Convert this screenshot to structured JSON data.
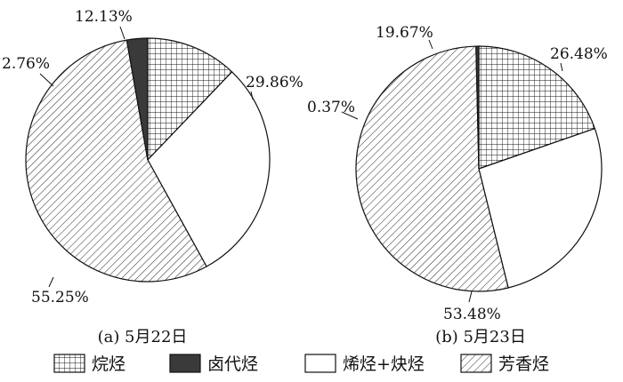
{
  "chart_data": [
    {
      "type": "pie",
      "caption": "(a)  5月22日",
      "slices": [
        {
          "label": "烷烃",
          "value": 12.13,
          "text": "12.13%"
        },
        {
          "label": "烯烃+炔烃",
          "value": 29.86,
          "text": "29.86%"
        },
        {
          "label": "芳香烃",
          "value": 55.25,
          "text": "55.25%"
        },
        {
          "label": "卤代烃",
          "value": 2.76,
          "text": "2.76%"
        }
      ]
    },
    {
      "type": "pie",
      "caption": "(b)  5月23日",
      "slices": [
        {
          "label": "烷烃",
          "value": 19.67,
          "text": "19.67%"
        },
        {
          "label": "烯烃+炔烃",
          "value": 26.48,
          "text": "26.48%"
        },
        {
          "label": "芳香烃",
          "value": 53.48,
          "text": "53.48%"
        },
        {
          "label": "卤代烃",
          "value": 0.37,
          "text": "0.37%"
        }
      ]
    }
  ],
  "legend": {
    "placement": "bottom",
    "items": [
      {
        "label": "烷烃",
        "fill": "grid"
      },
      {
        "label": "卤代烃",
        "fill": "solid-dark"
      },
      {
        "label": "烯烃+炔烃",
        "fill": "white"
      },
      {
        "label": "芳香烃",
        "fill": "diagonal-hatch"
      }
    ]
  },
  "colors": {
    "line": "#111111",
    "dark_fill": "#3a3a3a",
    "background": "#ffffff"
  }
}
